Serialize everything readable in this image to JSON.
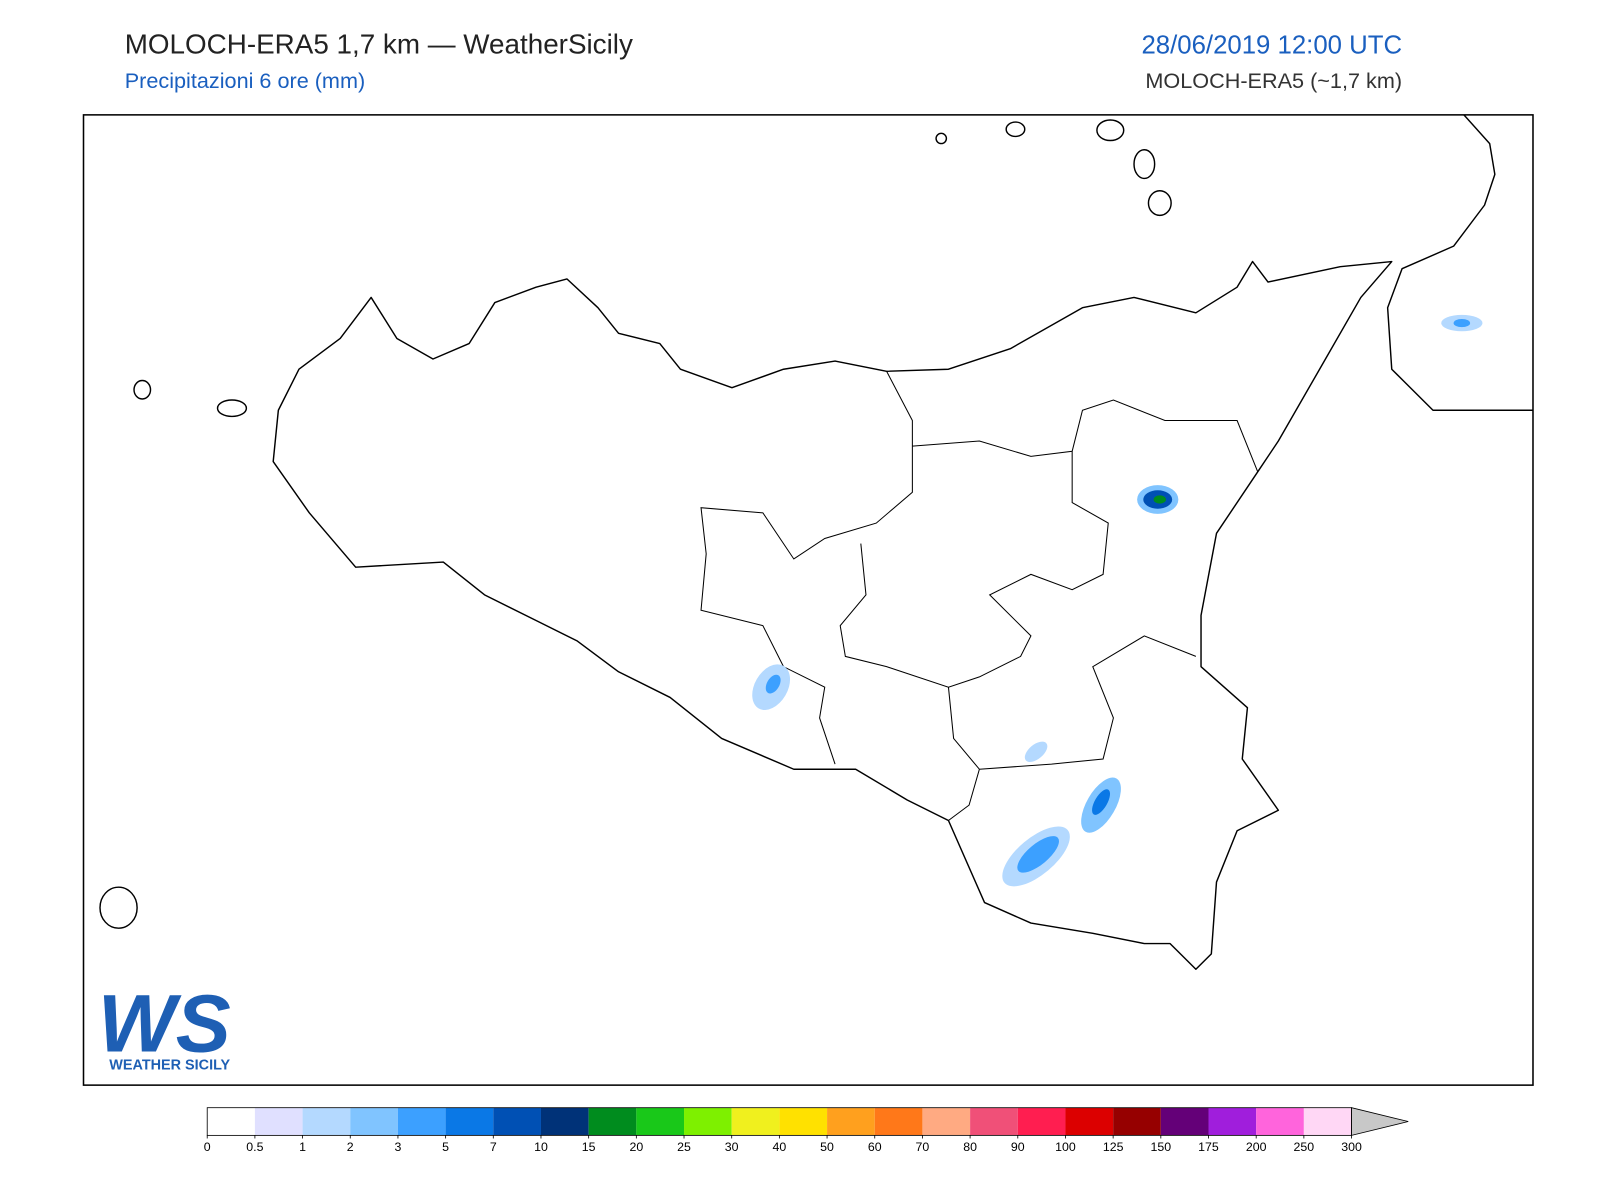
{
  "header": {
    "title": "MOLOCH-ERA5 1,7 km — WeatherSicily",
    "subtitle": "Precipitazioni 6 ore (mm)",
    "datetime": "28/06/2019 12:00 UTC",
    "model": "MOLOCH-ERA5 (~1,7 km)"
  },
  "logo": {
    "mark": "WS",
    "name": "WEATHER SICILY"
  },
  "colorbar": {
    "ticks": [
      0,
      0.5,
      1,
      2,
      3,
      5,
      7,
      10,
      15,
      20,
      25,
      30,
      40,
      50,
      60,
      70,
      80,
      90,
      100,
      125,
      150,
      175,
      200,
      250,
      300
    ],
    "colors": [
      "#ffffff",
      "#e0e0ff",
      "#b4d9ff",
      "#80c4ff",
      "#3ca0ff",
      "#0a78e6",
      "#0050b4",
      "#003278",
      "#008c1e",
      "#19c819",
      "#7ef000",
      "#f0f01e",
      "#ffe100",
      "#ffa01e",
      "#ff7819",
      "#ffaa82",
      "#f05078",
      "#ff1e50",
      "#dc0000",
      "#960000",
      "#640078",
      "#a01edc",
      "#ff64dc",
      "#ffd7f5"
    ],
    "extend_color": "#c8c8c8"
  }
}
